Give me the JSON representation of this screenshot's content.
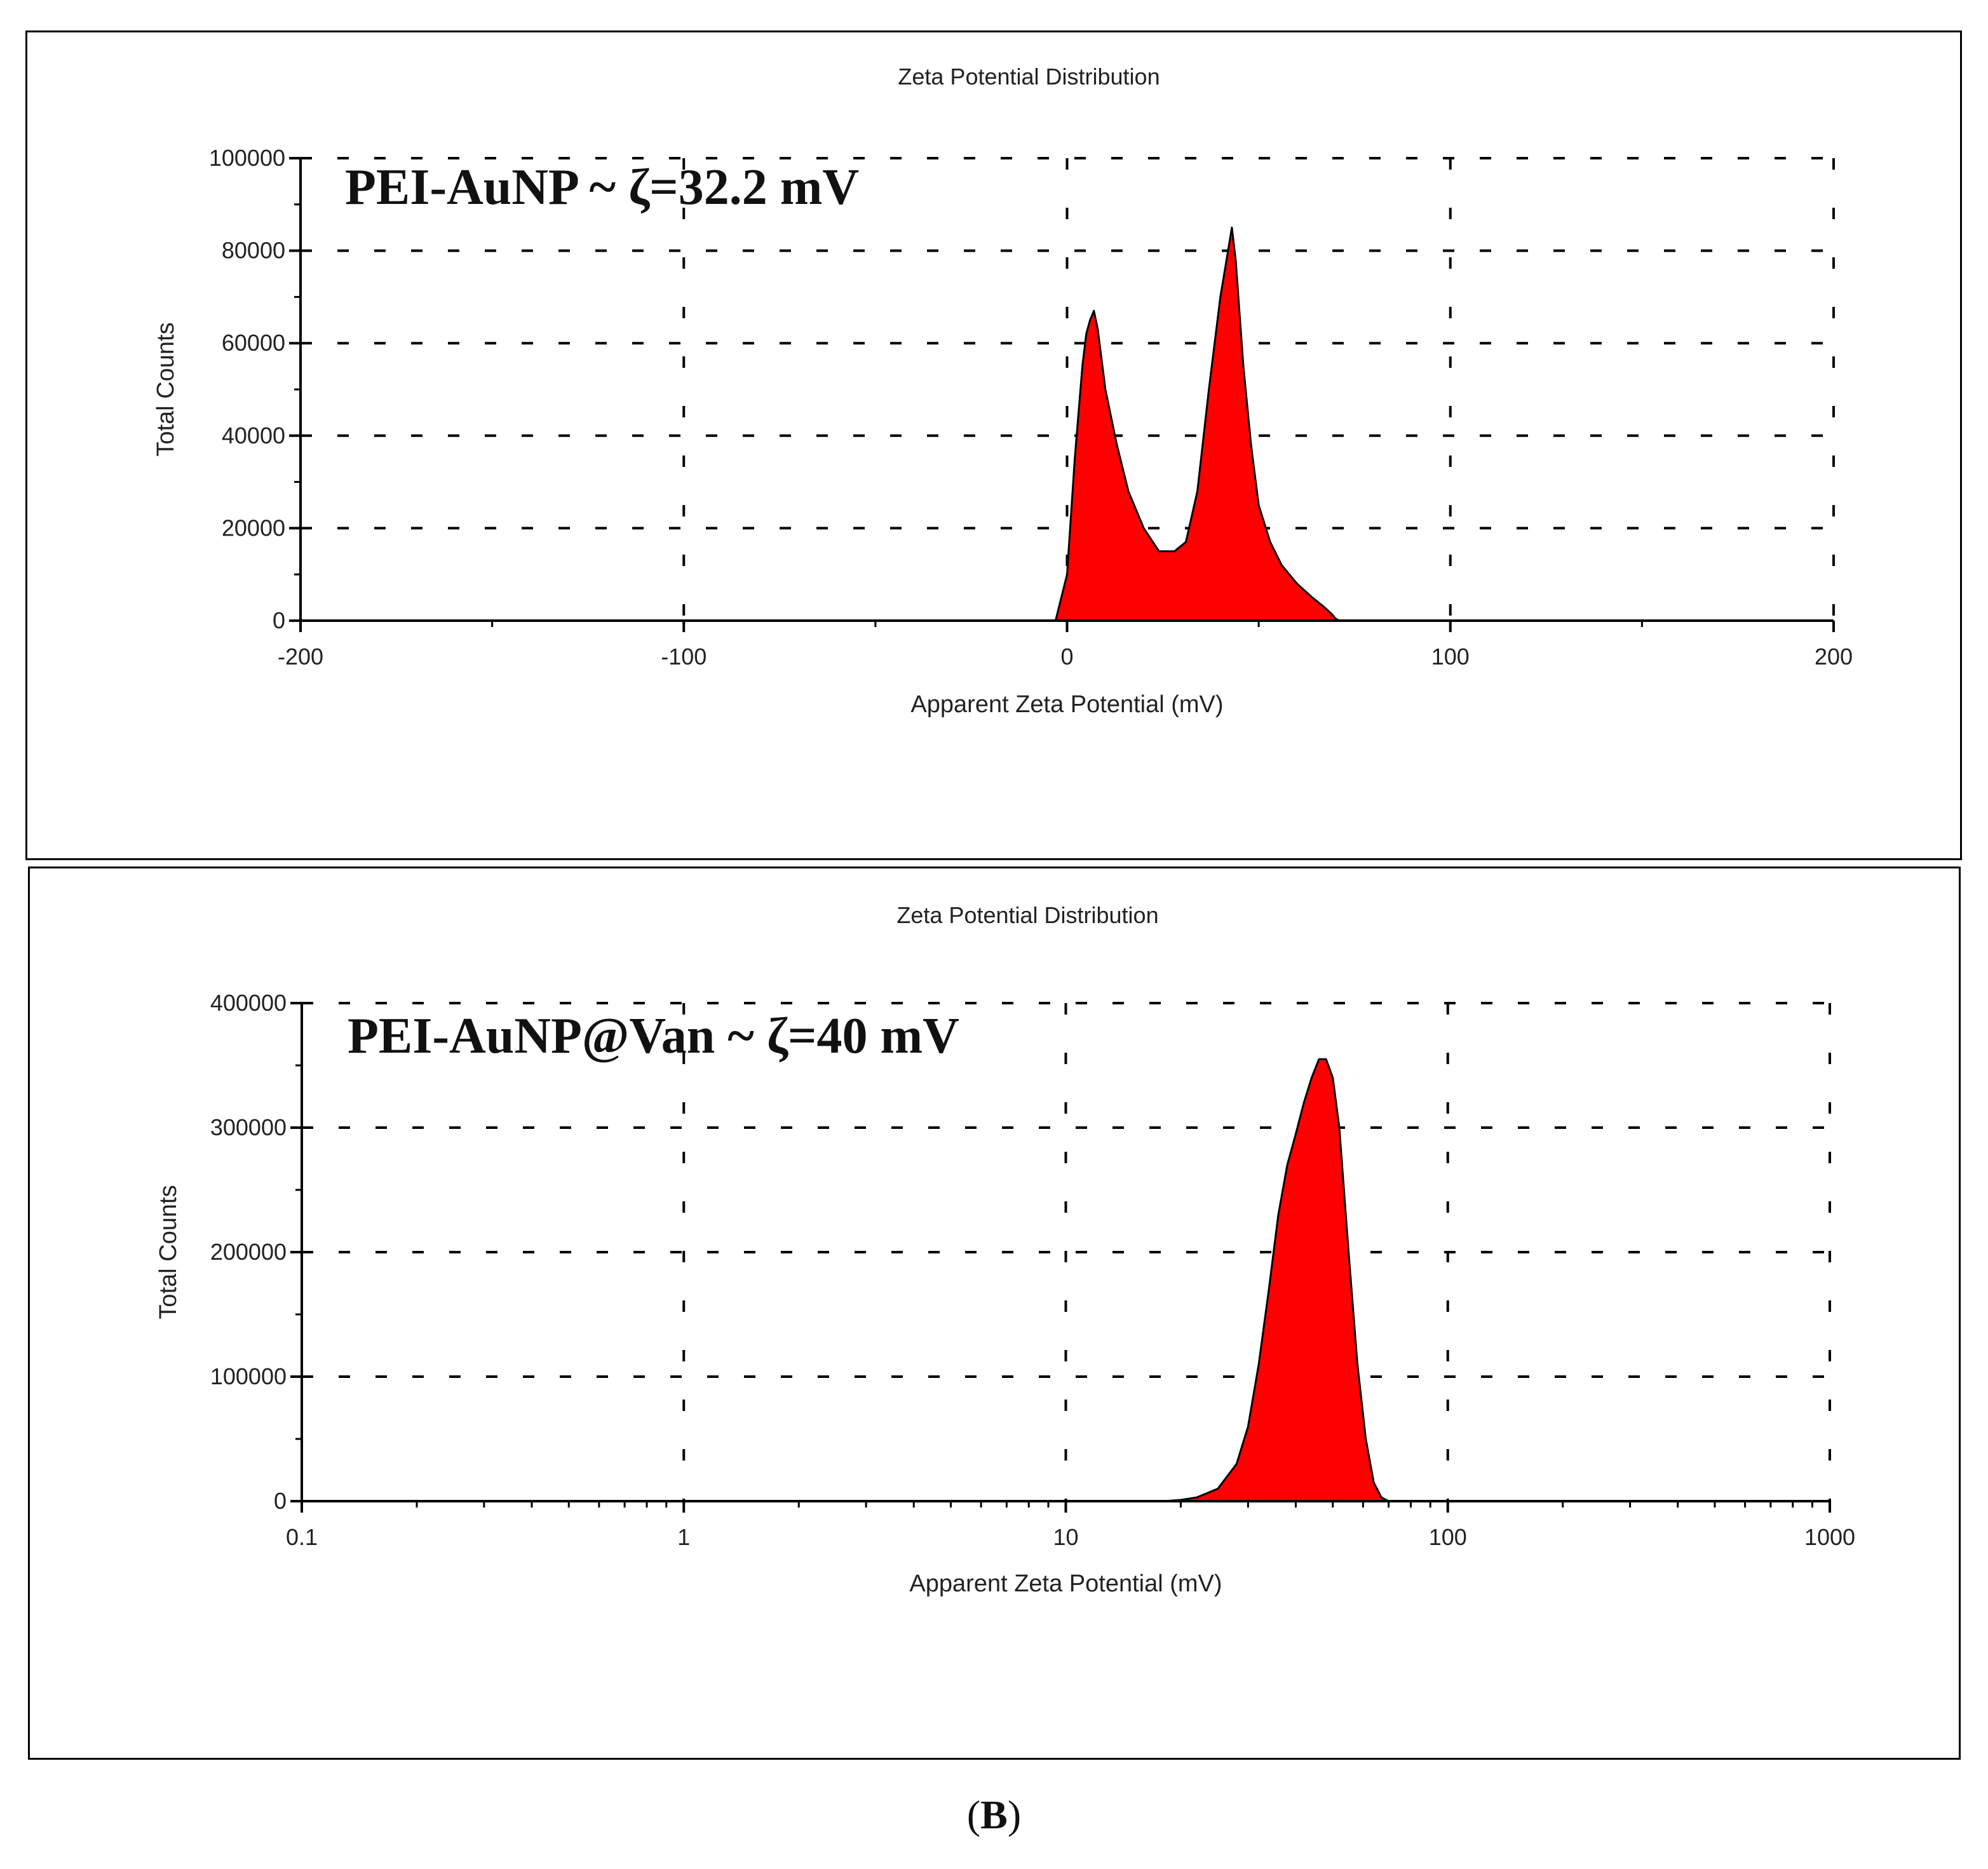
{
  "figure_label": {
    "open": "(",
    "letter": "B",
    "close": ")"
  },
  "chart_data": [
    {
      "type": "area",
      "title": "Zeta Potential Distribution",
      "annotation": "PEI-AuNP  ~ ζ=32.2 mV",
      "xlabel": "Apparent Zeta Potential (mV)",
      "ylabel": "Total Counts",
      "xscale": "linear",
      "xlim": [
        -200,
        200
      ],
      "ylim": [
        0,
        100000
      ],
      "xticks": [
        -200,
        -100,
        0,
        100,
        200
      ],
      "xtick_labels": [
        "-200",
        "-100",
        "0",
        "100",
        "200"
      ],
      "yticks": [
        0,
        20000,
        40000,
        60000,
        80000,
        100000
      ],
      "ytick_labels": [
        "0",
        "20000",
        "40000",
        "60000",
        "80000",
        "100000"
      ],
      "grid": true,
      "fill_color": "#ff0000",
      "series": [
        {
          "x": [
            -3,
            0,
            2,
            4,
            5,
            6,
            7,
            8,
            10,
            13,
            16,
            20,
            24,
            28,
            31,
            34,
            37,
            40,
            42,
            43,
            44,
            46,
            48,
            50,
            53,
            56,
            60,
            64,
            67,
            69,
            70,
            71
          ],
          "y": [
            0,
            10000,
            35000,
            55000,
            62000,
            65000,
            67000,
            63000,
            50000,
            38000,
            28000,
            20000,
            15000,
            15000,
            17000,
            28000,
            50000,
            70000,
            80000,
            85000,
            78000,
            55000,
            38000,
            25000,
            17000,
            12000,
            8000,
            5000,
            3000,
            1500,
            500,
            0
          ]
        }
      ]
    },
    {
      "type": "area",
      "title": "Zeta Potential Distribution",
      "annotation": "PEI-AuNP@Van  ~ ζ=40 mV",
      "xlabel": "Apparent Zeta Potential (mV)",
      "ylabel": "Total Counts",
      "xscale": "log",
      "xlim": [
        0.1,
        1000
      ],
      "ylim": [
        0,
        400000
      ],
      "xticks": [
        0.1,
        1,
        10,
        100,
        1000
      ],
      "xtick_labels": [
        "0.1",
        "1",
        "10",
        "100",
        "1000"
      ],
      "yticks": [
        0,
        100000,
        200000,
        300000,
        400000
      ],
      "ytick_labels": [
        "0",
        "100000",
        "200000",
        "300000",
        "400000"
      ],
      "grid": true,
      "fill_color": "#ff0000",
      "series": [
        {
          "x": [
            18,
            20,
            22,
            25,
            28,
            30,
            32,
            34,
            36,
            38,
            40,
            42,
            44,
            46,
            48,
            50,
            52,
            55,
            58,
            61,
            64,
            67,
            70
          ],
          "y": [
            0,
            1000,
            3000,
            10000,
            30000,
            60000,
            110000,
            170000,
            230000,
            270000,
            295000,
            320000,
            340000,
            355000,
            355000,
            340000,
            300000,
            200000,
            110000,
            50000,
            15000,
            3000,
            0
          ]
        }
      ]
    }
  ]
}
